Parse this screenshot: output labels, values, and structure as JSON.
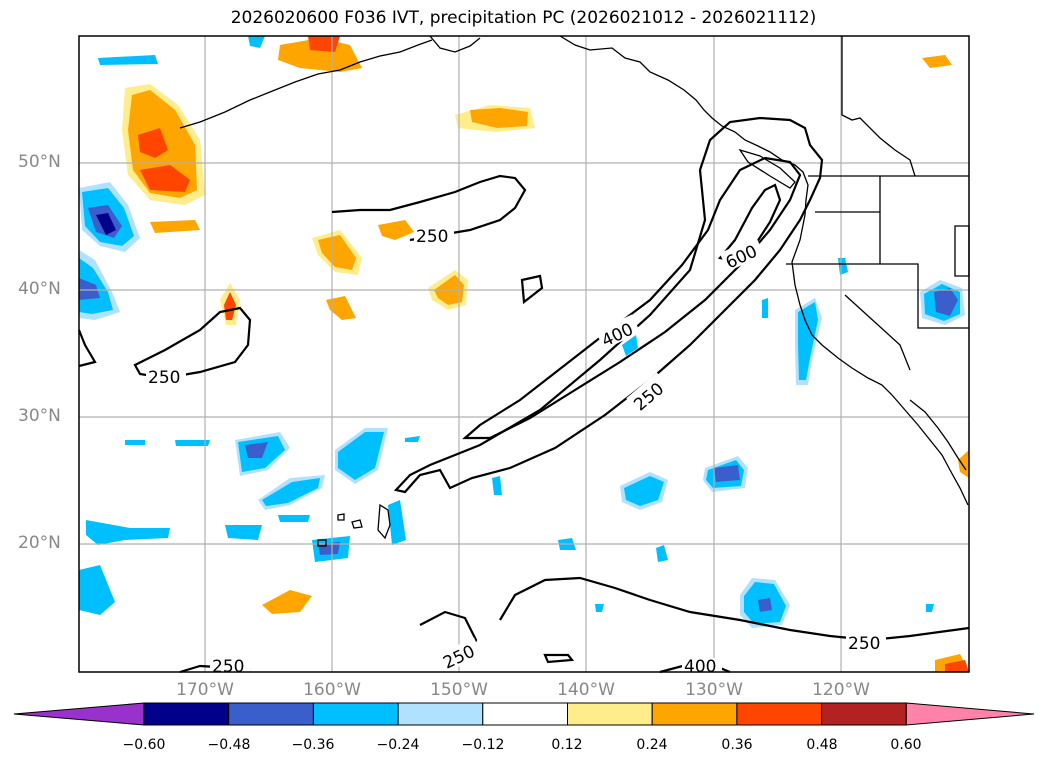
{
  "title": "2026020600 F036 IVT, precipitation PC (2026021012 - 2026021112)",
  "lat_labels": [
    "50°N",
    "40°N",
    "30°N",
    "20°N"
  ],
  "lon_labels": [
    "170°W",
    "160°W",
    "150°W",
    "140°W",
    "130°W",
    "120°W"
  ],
  "colorbar": {
    "tick_labels": [
      "−0.60",
      "−0.48",
      "−0.36",
      "−0.24",
      "−0.12",
      "0.12",
      "0.24",
      "0.36",
      "0.48",
      "0.60"
    ],
    "colors": [
      "#9932cc",
      "#00008b",
      "#3a5fcd",
      "#00bfff",
      "#b0e2ff",
      "#ffffff",
      "#ffec8b",
      "#ffa500",
      "#ff4500",
      "#b22222",
      "#ff82ab"
    ]
  },
  "contour_labels": [
    "250",
    "250",
    "250",
    "250",
    "250",
    "250",
    "400",
    "400",
    "600"
  ],
  "colors": {
    "neg_light": "#b0e2ff",
    "neg_mid": "#00bfff",
    "neg_dark": "#3a5fcd",
    "neg_darkest": "#00008b",
    "pos_light": "#ffec8b",
    "pos_mid": "#ffa500",
    "pos_dark": "#ff4500",
    "grid": "#b0b0b0"
  }
}
